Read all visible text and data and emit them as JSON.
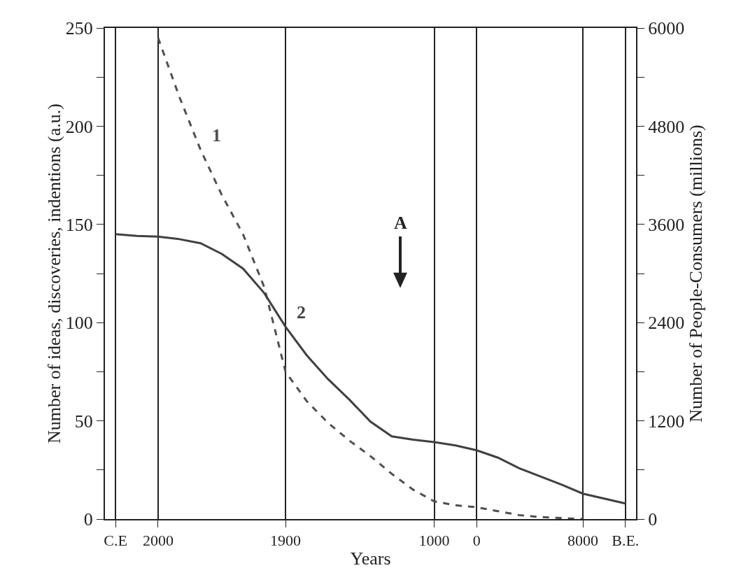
{
  "chart_data": {
    "type": "line",
    "xlabel": "Years",
    "ylabel": "Number of ideas, discoveries, indentions (a.u.)",
    "y2label": "Number of People-Consumers (millions)",
    "categories": [
      "C.E",
      null,
      "2000",
      null,
      null,
      null,
      null,
      null,
      "1900",
      null,
      null,
      null,
      null,
      null,
      null,
      "1000",
      null,
      "0",
      null,
      null,
      null,
      null,
      "8000",
      null,
      "B.E."
    ],
    "ylim": [
      0,
      250
    ],
    "yticks": [
      0,
      50,
      100,
      150,
      200,
      250
    ],
    "y2lim": [
      0,
      6000
    ],
    "y2ticks": [
      0,
      1200,
      2400,
      3600,
      4800,
      6000
    ],
    "grid": "x",
    "legend": false,
    "marker": "none",
    "series": [
      {
        "name": "1",
        "color": "#505050",
        "line_style": "dashed",
        "values": [
          null,
          null,
          245,
          215,
          188,
          165,
          145,
          118,
          75,
          60,
          49,
          40,
          32,
          23,
          15,
          9,
          7,
          6,
          4,
          2,
          1,
          0.5,
          0,
          null,
          null
        ]
      },
      {
        "name": "2",
        "color": "#404040",
        "line_style": "solid",
        "axis": "y2",
        "values": [
          3480,
          3460,
          3450,
          3420,
          3370,
          3240,
          3060,
          2760,
          2350,
          2000,
          1710,
          1460,
          1190,
          1010,
          970,
          940,
          900,
          840,
          750,
          620,
          520,
          420,
          310,
          250,
          190
        ]
      }
    ],
    "annotations": [
      "A"
    ]
  }
}
